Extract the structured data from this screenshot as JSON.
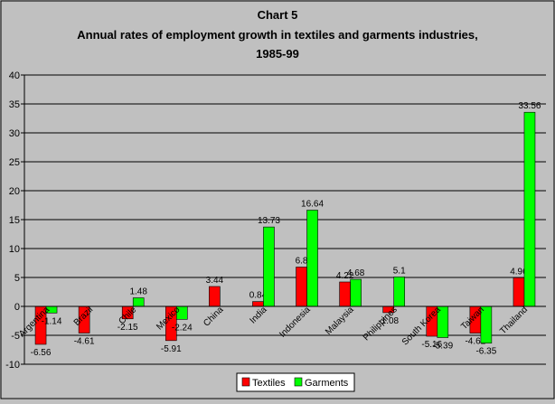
{
  "chart_data": {
    "type": "bar",
    "title": "Chart 5",
    "subtitle_lines": [
      "Annual rates of employment growth in textiles and garments industries,",
      "1985-99"
    ],
    "categories": [
      "Argentina",
      "Brazil",
      "Chile",
      "Mexico",
      "China",
      "India",
      "Indonesia",
      "Malaysia",
      "Philippines",
      "South Korea",
      "Taiwan",
      "Thailand"
    ],
    "series": [
      {
        "name": "Textiles",
        "color": "#ff0000",
        "values": [
          -6.56,
          -4.61,
          -2.15,
          -5.91,
          3.44,
          0.84,
          6.8,
          4.22,
          -1.08,
          -5.16,
          -4.62,
          4.96
        ],
        "labels": [
          "-6.56",
          "-4.61",
          "-2.15",
          "-5.91",
          "3.44",
          "0.84",
          "6.8",
          "4.22",
          "-1.08",
          "-5.16",
          "-4.62",
          "4.96"
        ]
      },
      {
        "name": "Garments",
        "color": "#00ff00",
        "values": [
          -1.14,
          null,
          1.48,
          -2.24,
          null,
          13.73,
          16.64,
          4.68,
          5.1,
          -5.39,
          -6.35,
          33.56
        ],
        "labels": [
          "-1.14",
          "",
          "1.48",
          "-2.24",
          "",
          "13.73",
          "16.64",
          "4.68",
          "5.1",
          "-5.39",
          "-6.35",
          "33.56"
        ]
      }
    ],
    "ylim": [
      -10,
      40
    ],
    "yticks": [
      -10,
      -5,
      0,
      5,
      10,
      15,
      20,
      25,
      30,
      35,
      40
    ],
    "xlabel": "",
    "ylabel": "",
    "grid": "horizontal",
    "legend_position": "bottom-center"
  }
}
